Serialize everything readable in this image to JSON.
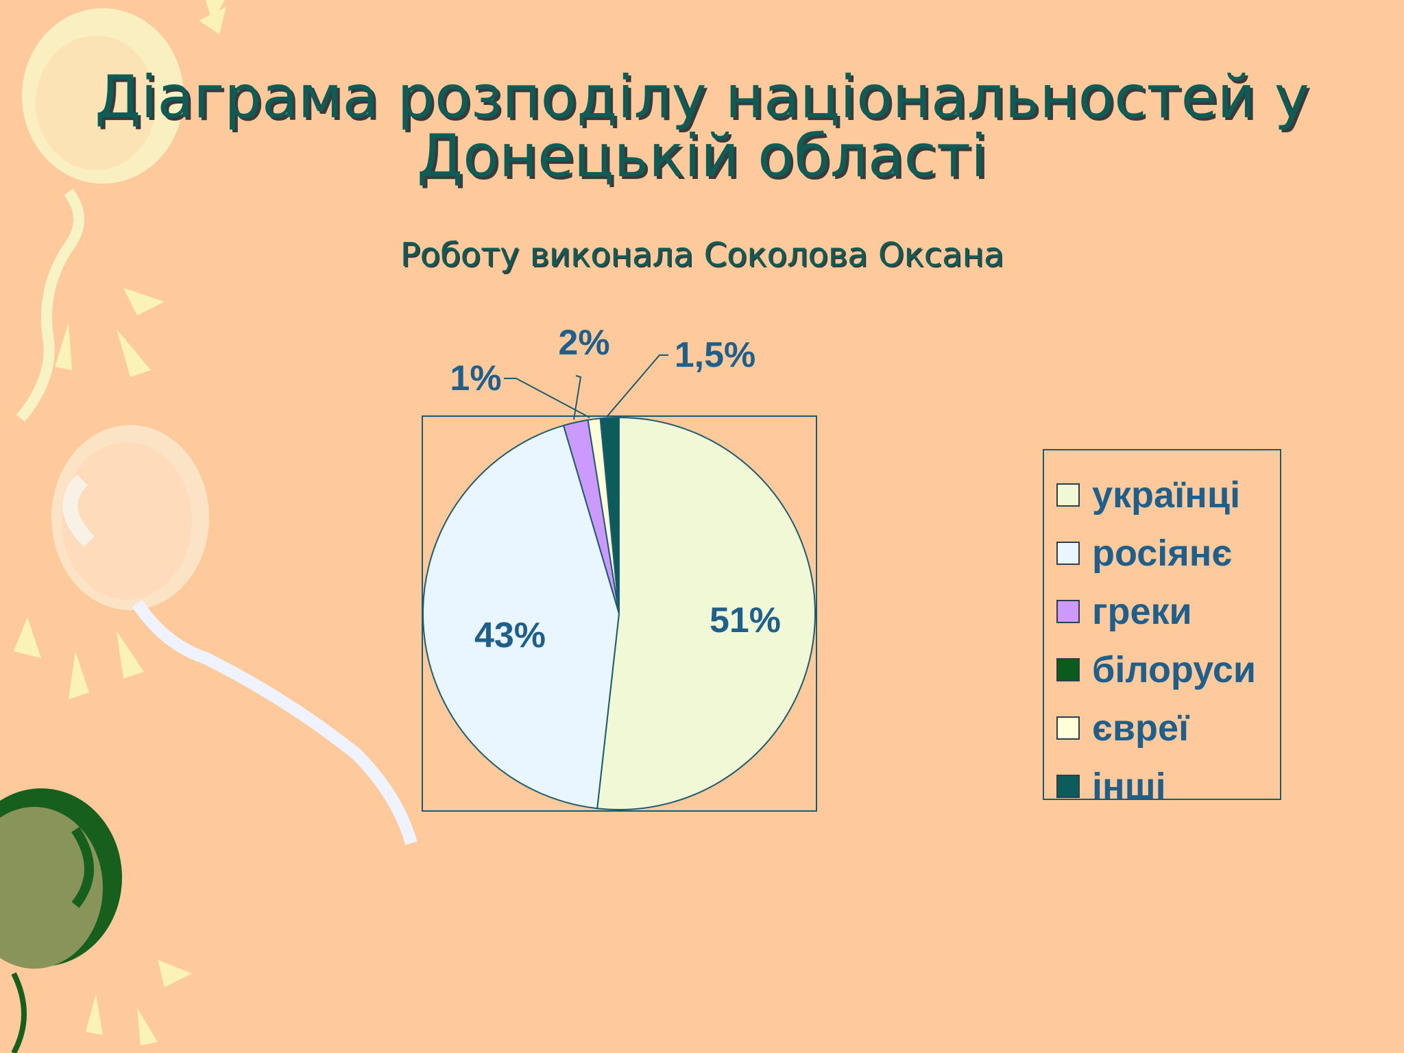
{
  "slide": {
    "title_line_1": "Діаграма розподілу національностей у",
    "title_line_2": "Донецькій області",
    "subtitle": "Роботу виконала Соколова Оксана"
  },
  "chart_data": {
    "type": "pie",
    "labels": [
      "українці",
      "росіянє",
      "греки",
      "білоруси",
      "євреї",
      "інші"
    ],
    "values": [
      51,
      43,
      2,
      0,
      1,
      1.5
    ],
    "data_labels": [
      "51%",
      "43%",
      "2%",
      "",
      "1%",
      "1,5%"
    ],
    "colors": [
      "#f0f8d6",
      "#eaf6ff",
      "#cc9afd",
      "#0b5a1e",
      "#ffffd8",
      "#0d5c5c"
    ],
    "legend_position": "right",
    "border_color": "#1a5b6f"
  }
}
